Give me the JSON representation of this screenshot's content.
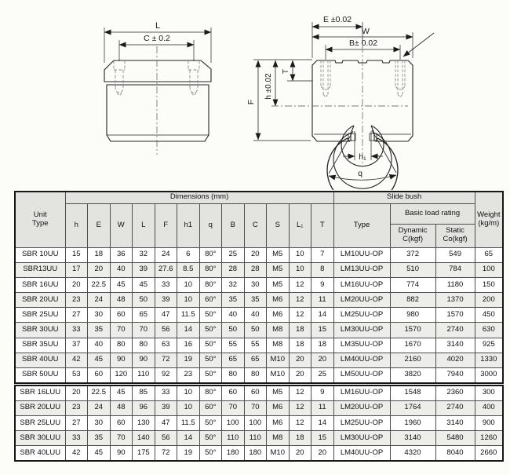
{
  "drawing": {
    "side_view": {
      "dim_L": "L",
      "dim_C": "C ± 0.2"
    },
    "front_view": {
      "dim_E": "E ±0.02",
      "dim_W": "W",
      "dim_B": "B± 0.02",
      "dim_T": "T",
      "dim_h": "h ±0.02",
      "dim_F": "F",
      "dim_h1": "h₁",
      "dim_q": "q"
    }
  },
  "table": {
    "header": {
      "unit_type": "Unit\nType",
      "dimensions": "Dimensions (mm)",
      "dim_columns": [
        "h",
        "E",
        "W",
        "L",
        "F",
        "h1",
        "q",
        "B",
        "C",
        "S",
        "L₁",
        "T"
      ],
      "slide_bush": "Slide bush",
      "type": "Type",
      "basic_load_rating": "Basic load rating",
      "dynamic": "Dynamic\nC(kgf)",
      "static": "Static\nCo(kgf)",
      "weight": "Weight\n(kg/m)"
    },
    "rows": [
      {
        "unit": "SBR 10UU",
        "dims": [
          "15",
          "18",
          "36",
          "32",
          "24",
          "6",
          "80°",
          "25",
          "20",
          "M5",
          "10",
          "7"
        ],
        "bush_type": "LM10UU-OP",
        "dynamic": "372",
        "static": "549",
        "weight": "65"
      },
      {
        "unit": "SBR13UU",
        "dims": [
          "17",
          "20",
          "40",
          "39",
          "27.6",
          "8.5",
          "80°",
          "28",
          "28",
          "M5",
          "10",
          "8"
        ],
        "bush_type": "LM13UU-OP",
        "dynamic": "510",
        "static": "784",
        "weight": "100"
      },
      {
        "unit": "SBR 16UU",
        "dims": [
          "20",
          "22.5",
          "45",
          "45",
          "33",
          "10",
          "80°",
          "32",
          "30",
          "M5",
          "12",
          "9"
        ],
        "bush_type": "LM16UU-OP",
        "dynamic": "774",
        "static": "1180",
        "weight": "150"
      },
      {
        "unit": "SBR 20UU",
        "dims": [
          "23",
          "24",
          "48",
          "50",
          "39",
          "10",
          "60°",
          "35",
          "35",
          "M6",
          "12",
          "11"
        ],
        "bush_type": "LM20UU-OP",
        "dynamic": "882",
        "static": "1370",
        "weight": "200"
      },
      {
        "unit": "SBR 25UU",
        "dims": [
          "27",
          "30",
          "60",
          "65",
          "47",
          "11.5",
          "50°",
          "40",
          "40",
          "M6",
          "12",
          "14"
        ],
        "bush_type": "LM25UU-OP",
        "dynamic": "980",
        "static": "1570",
        "weight": "450"
      },
      {
        "unit": "SBR 30UU",
        "dims": [
          "33",
          "35",
          "70",
          "70",
          "56",
          "14",
          "50°",
          "50",
          "50",
          "M8",
          "18",
          "15"
        ],
        "bush_type": "LM30UU-OP",
        "dynamic": "1570",
        "static": "2740",
        "weight": "630"
      },
      {
        "unit": "SBR 35UU",
        "dims": [
          "37",
          "40",
          "80",
          "80",
          "63",
          "16",
          "50°",
          "55",
          "55",
          "M8",
          "18",
          "18"
        ],
        "bush_type": "LM35UU-OP",
        "dynamic": "1670",
        "static": "3140",
        "weight": "925"
      },
      {
        "unit": "SBR 40UU",
        "dims": [
          "42",
          "45",
          "90",
          "90",
          "72",
          "19",
          "50°",
          "65",
          "65",
          "M10",
          "20",
          "20"
        ],
        "bush_type": "LM40UU-OP",
        "dynamic": "2160",
        "static": "4020",
        "weight": "1330"
      },
      {
        "unit": "SBR 50UU",
        "dims": [
          "53",
          "60",
          "120",
          "110",
          "92",
          "23",
          "50°",
          "80",
          "80",
          "M10",
          "20",
          "25"
        ],
        "bush_type": "LM50UU-OP",
        "dynamic": "3820",
        "static": "7940",
        "weight": "3000"
      }
    ],
    "rows_long": [
      {
        "unit": "SBR 16LUU",
        "dims": [
          "20",
          "22.5",
          "45",
          "85",
          "33",
          "10",
          "80°",
          "60",
          "60",
          "M5",
          "12",
          "9"
        ],
        "bush_type": "LM16UU-OP",
        "dynamic": "1548",
        "static": "2360",
        "weight": "300"
      },
      {
        "unit": "SBR 20LUU",
        "dims": [
          "23",
          "24",
          "48",
          "96",
          "39",
          "10",
          "60°",
          "70",
          "70",
          "M6",
          "12",
          "11"
        ],
        "bush_type": "LM20UU-OP",
        "dynamic": "1764",
        "static": "2740",
        "weight": "400"
      },
      {
        "unit": "SBR 25LUU",
        "dims": [
          "27",
          "30",
          "60",
          "130",
          "47",
          "11.5",
          "50°",
          "100",
          "100",
          "M6",
          "12",
          "14"
        ],
        "bush_type": "LM25UU-OP",
        "dynamic": "1960",
        "static": "3140",
        "weight": "900"
      },
      {
        "unit": "SBR 30LUU",
        "dims": [
          "33",
          "35",
          "70",
          "140",
          "56",
          "14",
          "50°",
          "110",
          "110",
          "M8",
          "18",
          "15"
        ],
        "bush_type": "LM30UU-OP",
        "dynamic": "3140",
        "static": "5480",
        "weight": "1260"
      },
      {
        "unit": "SBR 40LUU",
        "dims": [
          "42",
          "45",
          "90",
          "175",
          "72",
          "19",
          "50°",
          "180",
          "180",
          "M10",
          "20",
          "20"
        ],
        "bush_type": "LM40UU-OP",
        "dynamic": "4320",
        "static": "8040",
        "weight": "2660"
      }
    ]
  }
}
